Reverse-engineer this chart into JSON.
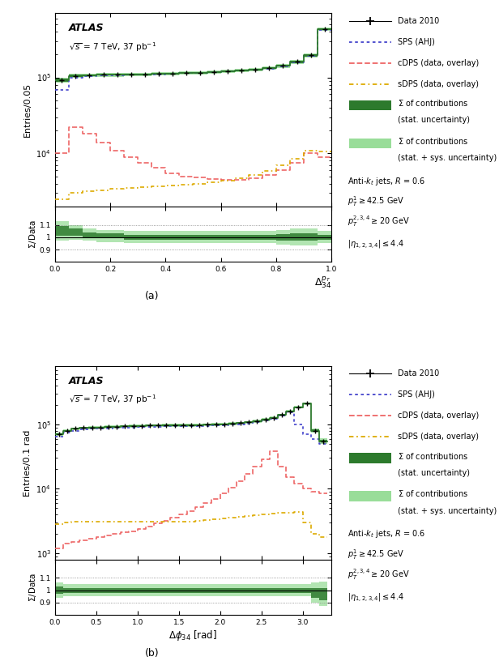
{
  "fig_width": 6.16,
  "fig_height": 8.16,
  "panel_a": {
    "xlabel": "$\\Delta_{34}^{p_T}$",
    "ylabel": "Entries/0.05",
    "xlim": [
      0,
      1
    ],
    "ylim_main": [
      2000,
      700000
    ],
    "ylim_ratio": [
      0.8,
      1.25
    ],
    "atlas_label": "ATLAS",
    "energy_label": "$\\sqrt{s}$ = 7 TeV, 37 pb$^{-1}$",
    "panel_label": "(a)",
    "data_x": [
      0.025,
      0.075,
      0.125,
      0.175,
      0.225,
      0.275,
      0.325,
      0.375,
      0.425,
      0.475,
      0.525,
      0.575,
      0.625,
      0.675,
      0.725,
      0.775,
      0.825,
      0.875,
      0.925,
      0.975
    ],
    "data_y": [
      92000,
      105000,
      107000,
      108000,
      108000,
      109000,
      110000,
      111000,
      113000,
      115000,
      116000,
      118000,
      120000,
      123000,
      127000,
      133000,
      143000,
      160000,
      195000,
      430000
    ],
    "sps_y": [
      68000,
      98000,
      103000,
      106000,
      107000,
      108000,
      109000,
      110000,
      112000,
      114000,
      116000,
      118000,
      120000,
      122000,
      126000,
      131000,
      141000,
      156000,
      192000,
      420000
    ],
    "cdps_y": [
      10000,
      22000,
      18000,
      14000,
      11000,
      9000,
      7500,
      6500,
      5500,
      5000,
      4800,
      4600,
      4500,
      4500,
      4700,
      5200,
      6000,
      7500,
      10000,
      9000
    ],
    "sdps_y": [
      2500,
      3000,
      3200,
      3300,
      3400,
      3500,
      3600,
      3700,
      3800,
      3900,
      4000,
      4200,
      4400,
      4700,
      5200,
      5900,
      7000,
      8500,
      11000,
      10500
    ],
    "sum_y": [
      92000,
      105000,
      107000,
      108000,
      108000,
      109000,
      110000,
      111000,
      113000,
      115000,
      116000,
      118000,
      120000,
      123000,
      127000,
      133000,
      143000,
      160000,
      195000,
      430000
    ],
    "sum_stat_err": [
      0.04,
      0.03,
      0.02,
      0.02,
      0.02,
      0.02,
      0.02,
      0.02,
      0.02,
      0.02,
      0.02,
      0.02,
      0.02,
      0.02,
      0.02,
      0.02,
      0.025,
      0.03,
      0.03,
      0.02
    ],
    "sum_sys_err": [
      0.08,
      0.06,
      0.05,
      0.05,
      0.05,
      0.05,
      0.05,
      0.05,
      0.05,
      0.05,
      0.05,
      0.05,
      0.05,
      0.05,
      0.05,
      0.05,
      0.06,
      0.07,
      0.07,
      0.05
    ],
    "ratio_y": [
      1.05,
      1.04,
      1.02,
      1.01,
      1.01,
      1.0,
      1.0,
      1.0,
      1.0,
      1.0,
      1.0,
      1.0,
      1.0,
      1.0,
      1.0,
      1.0,
      1.0,
      1.0,
      1.0,
      1.0
    ],
    "ratio_stat_err": [
      0.04,
      0.03,
      0.02,
      0.02,
      0.02,
      0.02,
      0.02,
      0.02,
      0.02,
      0.02,
      0.02,
      0.02,
      0.02,
      0.02,
      0.02,
      0.02,
      0.025,
      0.03,
      0.03,
      0.02
    ],
    "ratio_sys_err": [
      0.08,
      0.06,
      0.05,
      0.05,
      0.05,
      0.05,
      0.05,
      0.05,
      0.05,
      0.05,
      0.05,
      0.05,
      0.05,
      0.05,
      0.05,
      0.05,
      0.06,
      0.07,
      0.07,
      0.05
    ]
  },
  "panel_b": {
    "xlabel": "$\\Delta\\phi_{34}$ [rad]",
    "ylabel": "Entries/0.1 rad",
    "xlim": [
      0,
      3.35
    ],
    "ylim_main": [
      800,
      800000
    ],
    "ylim_ratio": [
      0.8,
      1.25
    ],
    "atlas_label": "ATLAS",
    "energy_label": "$\\sqrt{s}$ = 7 TeV, 37 pb$^{-1}$",
    "panel_label": "(b)",
    "data_x": [
      0.05,
      0.15,
      0.25,
      0.35,
      0.45,
      0.55,
      0.65,
      0.75,
      0.85,
      0.95,
      1.05,
      1.15,
      1.25,
      1.35,
      1.45,
      1.55,
      1.65,
      1.75,
      1.85,
      1.95,
      2.05,
      2.15,
      2.25,
      2.35,
      2.45,
      2.55,
      2.65,
      2.75,
      2.85,
      2.95,
      3.05,
      3.15,
      3.25
    ],
    "data_y": [
      70000,
      80000,
      85000,
      88000,
      89000,
      90000,
      91000,
      92000,
      93000,
      94000,
      95000,
      96000,
      96000,
      97000,
      97000,
      97000,
      97500,
      98000,
      99000,
      100000,
      101000,
      103000,
      105000,
      108000,
      112000,
      118000,
      127000,
      140000,
      160000,
      185000,
      210000,
      80000,
      55000
    ],
    "sps_y": [
      65000,
      75000,
      80000,
      83000,
      85000,
      86000,
      87000,
      88000,
      89000,
      90000,
      91000,
      92000,
      92000,
      93000,
      93000,
      93000,
      93500,
      94000,
      95000,
      96000,
      97000,
      99000,
      101000,
      104000,
      108000,
      114000,
      123000,
      136000,
      156000,
      100000,
      70000,
      60000,
      50000
    ],
    "cdps_y": [
      1200,
      1400,
      1500,
      1600,
      1700,
      1800,
      1900,
      2000,
      2100,
      2200,
      2400,
      2600,
      2900,
      3200,
      3600,
      4000,
      4500,
      5200,
      6000,
      7000,
      8500,
      10500,
      13000,
      17000,
      22000,
      29000,
      38000,
      22000,
      15000,
      12000,
      10000,
      9000,
      8500
    ],
    "sdps_y": [
      2800,
      3000,
      3100,
      3100,
      3100,
      3100,
      3100,
      3100,
      3100,
      3100,
      3100,
      3100,
      3100,
      3100,
      3100,
      3100,
      3100,
      3200,
      3300,
      3400,
      3500,
      3600,
      3700,
      3800,
      3900,
      4000,
      4100,
      4200,
      4300,
      4400,
      3000,
      2000,
      1800
    ],
    "sum_y": [
      70000,
      80000,
      85000,
      88000,
      89000,
      90000,
      91000,
      92000,
      93000,
      94000,
      95000,
      96000,
      96000,
      97000,
      97000,
      97000,
      97500,
      98000,
      99000,
      100000,
      101000,
      103000,
      105000,
      108000,
      112000,
      118000,
      127000,
      140000,
      160000,
      185000,
      210000,
      80000,
      55000
    ],
    "sum_stat_err": [
      0.03,
      0.02,
      0.02,
      0.02,
      0.02,
      0.02,
      0.02,
      0.02,
      0.02,
      0.02,
      0.02,
      0.02,
      0.02,
      0.02,
      0.02,
      0.02,
      0.02,
      0.02,
      0.02,
      0.02,
      0.02,
      0.02,
      0.02,
      0.02,
      0.02,
      0.02,
      0.02,
      0.02,
      0.02,
      0.02,
      0.02,
      0.04,
      0.05
    ],
    "sum_sys_err": [
      0.06,
      0.05,
      0.05,
      0.05,
      0.05,
      0.05,
      0.05,
      0.05,
      0.05,
      0.05,
      0.05,
      0.05,
      0.05,
      0.05,
      0.05,
      0.05,
      0.05,
      0.05,
      0.05,
      0.05,
      0.05,
      0.05,
      0.05,
      0.05,
      0.05,
      0.05,
      0.05,
      0.05,
      0.05,
      0.05,
      0.05,
      0.08,
      0.1
    ],
    "ratio_y": [
      1.0,
      1.0,
      1.0,
      1.0,
      1.0,
      1.0,
      1.0,
      1.0,
      1.0,
      1.0,
      1.0,
      1.0,
      1.0,
      1.0,
      1.0,
      1.0,
      1.0,
      1.0,
      1.0,
      1.0,
      1.0,
      1.0,
      1.0,
      1.0,
      1.0,
      1.0,
      1.0,
      1.0,
      1.0,
      1.0,
      1.0,
      0.98,
      0.97
    ],
    "ratio_stat_err": [
      0.03,
      0.02,
      0.02,
      0.02,
      0.02,
      0.02,
      0.02,
      0.02,
      0.02,
      0.02,
      0.02,
      0.02,
      0.02,
      0.02,
      0.02,
      0.02,
      0.02,
      0.02,
      0.02,
      0.02,
      0.02,
      0.02,
      0.02,
      0.02,
      0.02,
      0.02,
      0.02,
      0.02,
      0.02,
      0.02,
      0.02,
      0.04,
      0.05
    ],
    "ratio_sys_err": [
      0.06,
      0.05,
      0.05,
      0.05,
      0.05,
      0.05,
      0.05,
      0.05,
      0.05,
      0.05,
      0.05,
      0.05,
      0.05,
      0.05,
      0.05,
      0.05,
      0.05,
      0.05,
      0.05,
      0.05,
      0.05,
      0.05,
      0.05,
      0.05,
      0.05,
      0.05,
      0.05,
      0.05,
      0.05,
      0.05,
      0.05,
      0.08,
      0.1
    ]
  },
  "colors": {
    "data": "#000000",
    "sps": "#4444cc",
    "cdps": "#ee6666",
    "sdps": "#ddaa00",
    "sum_dark": "#2d7a2d",
    "sum_light": "#99dd99"
  },
  "legend": {
    "data_label": "Data 2010",
    "sps_label": "SPS (AHJ)",
    "cdps_label": "cDPS (data, overlay)",
    "sdps_label": "sDPS (data, overlay)",
    "sum_dark_label1": "$\\Sigma$ of contributions",
    "sum_dark_label2": "(stat. uncertainty)",
    "sum_light_label1": "$\\Sigma$ of contributions",
    "sum_light_label2": "(stat. + sys. uncertainty)",
    "jet_label": "Anti-$k_t$ jets, $R$ = 0.6",
    "pt1_label": "$p_T^1 \\geq 42.5$ GeV",
    "pt234_label": "$p_T^{2,3,4} \\geq 20$ GeV",
    "eta_label": "$|\\eta_{1,2,3,4}| \\leq 4.4$"
  }
}
